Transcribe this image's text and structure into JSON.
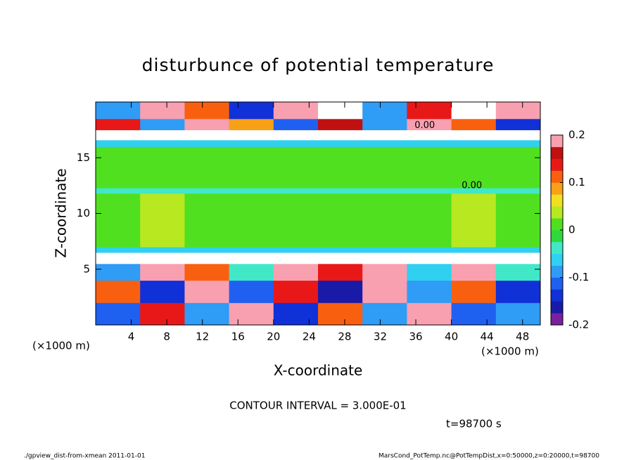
{
  "chart_data": {
    "type": "heatmap",
    "title": "disturbunce of potential temperature",
    "xlabel": "X-coordinate",
    "ylabel": "Z-coordinate",
    "x_unit": "(×1000 m)",
    "y_unit": "(×1000 m)",
    "contour_note": "CONTOUR INTERVAL = 3.000E-01",
    "time_note": "t=98700 s",
    "footer_left": "./gpview_dist-from-xmean  2011-01-01",
    "footer_right": "MarsCond_PotTemp.nc@PotTempDist,x=0:50000,z=0:20000,t=98700",
    "xlim": [
      0,
      50
    ],
    "ylim": [
      0,
      20
    ],
    "xticks": [
      4,
      8,
      12,
      16,
      20,
      24,
      28,
      32,
      36,
      40,
      44,
      48
    ],
    "yticks": [
      5,
      10,
      15
    ],
    "xbins": [
      0,
      5,
      10,
      15,
      20,
      25,
      30,
      35,
      40,
      45,
      50
    ],
    "zbins": [
      0,
      2,
      4,
      5.5,
      6.5,
      7,
      11.8,
      12.3,
      16,
      16.6,
      17.5,
      18.5,
      20
    ],
    "values": [
      [
        -0.12,
        0.15,
        -0.1,
        0.18,
        -0.15,
        0.12,
        -0.08,
        0.2,
        -0.12,
        -0.1
      ],
      [
        0.1,
        -0.14,
        0.2,
        -0.12,
        0.14,
        -0.16,
        0.18,
        -0.1,
        0.12,
        -0.14
      ],
      [
        -0.08,
        0.2,
        0.12,
        -0.05,
        0.2,
        0.15,
        0.2,
        -0.06,
        0.2,
        -0.05
      ],
      [
        0.25,
        0.25,
        0.25,
        0.25,
        0.25,
        0.25,
        0.25,
        0.25,
        0.25,
        0.25
      ],
      [
        -0.06,
        -0.06,
        -0.06,
        -0.06,
        -0.06,
        -0.06,
        -0.06,
        -0.06,
        -0.06,
        -0.06
      ],
      [
        0.02,
        0.03,
        0.01,
        0.02,
        0.0,
        0.0,
        0.01,
        0.02,
        0.03,
        0.02
      ],
      [
        -0.05,
        -0.05,
        -0.05,
        -0.05,
        -0.05,
        -0.05,
        -0.05,
        -0.05,
        -0.05,
        -0.05
      ],
      [
        0.01,
        0.01,
        0.01,
        0.01,
        0.01,
        0.01,
        0.01,
        0.01,
        0.01,
        0.01
      ],
      [
        -0.06,
        -0.06,
        -0.06,
        -0.06,
        -0.06,
        -0.06,
        -0.06,
        -0.06,
        -0.06,
        -0.06
      ],
      [
        0.25,
        0.25,
        0.25,
        0.25,
        0.25,
        0.25,
        0.25,
        0.25,
        0.25,
        0.25
      ],
      [
        0.15,
        -0.1,
        0.2,
        0.08,
        -0.12,
        0.16,
        -0.08,
        0.2,
        0.1,
        -0.15
      ],
      [
        -0.1,
        0.2,
        0.12,
        -0.14,
        0.18,
        0.25,
        -0.1,
        0.14,
        0.25,
        0.2
      ]
    ],
    "contour_labels": [
      {
        "text": "0.00",
        "x": 42.3,
        "z": 12.5
      },
      {
        "text": "0.00",
        "x": 37,
        "z": 17.9
      }
    ],
    "colorbar": {
      "lim": [
        -0.2,
        0.2
      ],
      "ticks": [
        0.2,
        0.1,
        0,
        -0.1,
        -0.2
      ],
      "colors": [
        "#7a1fa0",
        "#1a1aa8",
        "#1030d8",
        "#2060f0",
        "#2f9cf5",
        "#30d0f0",
        "#40e8c8",
        "#30d840",
        "#50e020",
        "#b8e820",
        "#f0e020",
        "#f8a018",
        "#f86010",
        "#e81818",
        "#c01010",
        "#f8a0b0"
      ]
    }
  }
}
